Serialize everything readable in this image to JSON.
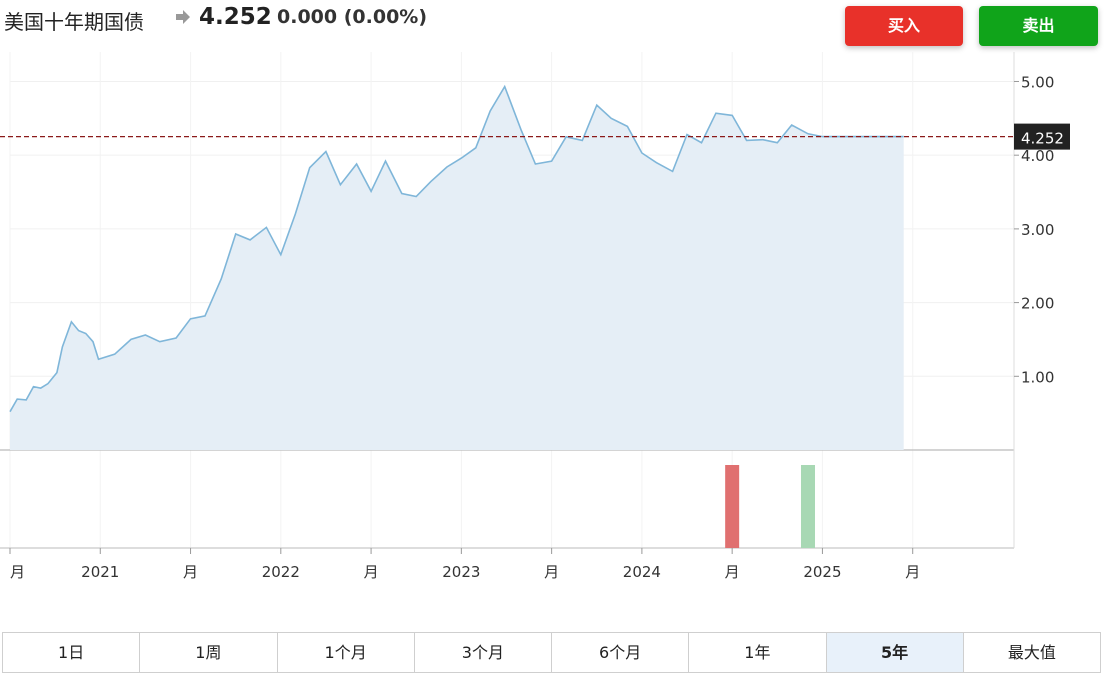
{
  "header": {
    "title": "美国十年期国债",
    "price": "4.252",
    "change": "0.000",
    "change_pct": "(0.00%)",
    "arrow_icon": "right-arrow-icon",
    "buy_label": "买入",
    "sell_label": "卖出"
  },
  "colors": {
    "buy": "#e8312a",
    "sell": "#10a41a",
    "line": "#7fb6d9",
    "area": "#e5eef6",
    "current_line": "#8b1a1a",
    "current_label_bg": "#222222",
    "volume_red": "#e07070",
    "volume_green": "#a8d8b4"
  },
  "chart_data": {
    "type": "area",
    "current_value": 4.252,
    "current_label": "4.252",
    "ylim": [
      0,
      5.4
    ],
    "y_ticks": [
      1.0,
      2.0,
      3.0,
      4.0,
      5.0
    ],
    "y_tick_labels": [
      "1.00",
      "2.00",
      "3.00",
      "4.00",
      "5.00"
    ],
    "xlim": [
      2020.0,
      2025.55
    ],
    "x_ticks": [
      {
        "x": 2020.0,
        "label": "月"
      },
      {
        "x": 2020.5,
        "label": "2021"
      },
      {
        "x": 2021.0,
        "label": "月"
      },
      {
        "x": 2021.5,
        "label": "2022"
      },
      {
        "x": 2022.0,
        "label": "月"
      },
      {
        "x": 2022.5,
        "label": "2023"
      },
      {
        "x": 2023.0,
        "label": "月"
      },
      {
        "x": 2023.5,
        "label": "2024"
      },
      {
        "x": 2024.0,
        "label": "月"
      },
      {
        "x": 2024.5,
        "label": "2025"
      },
      {
        "x": 2025.0,
        "label": "月"
      }
    ],
    "x": [
      2020.0,
      2020.04,
      2020.09,
      2020.13,
      2020.17,
      2020.21,
      2020.26,
      2020.29,
      2020.34,
      2020.38,
      2020.42,
      2020.46,
      2020.49,
      2020.58,
      2020.67,
      2020.75,
      2020.83,
      2020.92,
      2021.0,
      2021.08,
      2021.17,
      2021.25,
      2021.33,
      2021.42,
      2021.5,
      2021.58,
      2021.66,
      2021.75,
      2021.83,
      2021.92,
      2022.0,
      2022.08,
      2022.17,
      2022.25,
      2022.33,
      2022.42,
      2022.5,
      2022.58,
      2022.66,
      2022.74,
      2022.83,
      2022.91,
      2023.0,
      2023.08,
      2023.17,
      2023.25,
      2023.33,
      2023.42,
      2023.5,
      2023.58,
      2023.67,
      2023.75,
      2023.83,
      2023.91,
      2024.0,
      2024.08,
      2024.17,
      2024.25,
      2024.33,
      2024.42,
      2024.5,
      2024.58,
      2024.66,
      2024.75,
      2024.83,
      2024.91,
      2024.95
    ],
    "values": [
      0.52,
      0.69,
      0.68,
      0.86,
      0.84,
      0.9,
      1.05,
      1.4,
      1.74,
      1.62,
      1.58,
      1.47,
      1.23,
      1.3,
      1.5,
      1.56,
      1.47,
      1.52,
      1.78,
      1.82,
      2.32,
      2.93,
      2.85,
      3.02,
      2.65,
      3.2,
      3.83,
      4.05,
      3.6,
      3.88,
      3.51,
      3.92,
      3.48,
      3.44,
      3.64,
      3.84,
      3.96,
      4.1,
      4.6,
      4.93,
      4.35,
      3.88,
      3.92,
      4.25,
      4.2,
      4.68,
      4.5,
      4.39,
      4.03,
      3.9,
      3.78,
      4.28,
      4.17,
      4.57,
      4.54,
      4.2,
      4.21,
      4.17,
      4.41,
      4.29,
      4.252,
      4.252,
      4.252,
      4.252,
      4.252,
      4.252,
      4.252
    ],
    "volume": [
      {
        "x": 2024.0,
        "value": 1,
        "color": "red"
      },
      {
        "x": 2024.42,
        "value": 1,
        "color": "green"
      }
    ]
  },
  "ranges": [
    {
      "label": "1日",
      "active": false
    },
    {
      "label": "1周",
      "active": false
    },
    {
      "label": "1个月",
      "active": false
    },
    {
      "label": "3个月",
      "active": false
    },
    {
      "label": "6个月",
      "active": false
    },
    {
      "label": "1年",
      "active": false
    },
    {
      "label": "5年",
      "active": true
    },
    {
      "label": "最大值",
      "active": false
    }
  ]
}
